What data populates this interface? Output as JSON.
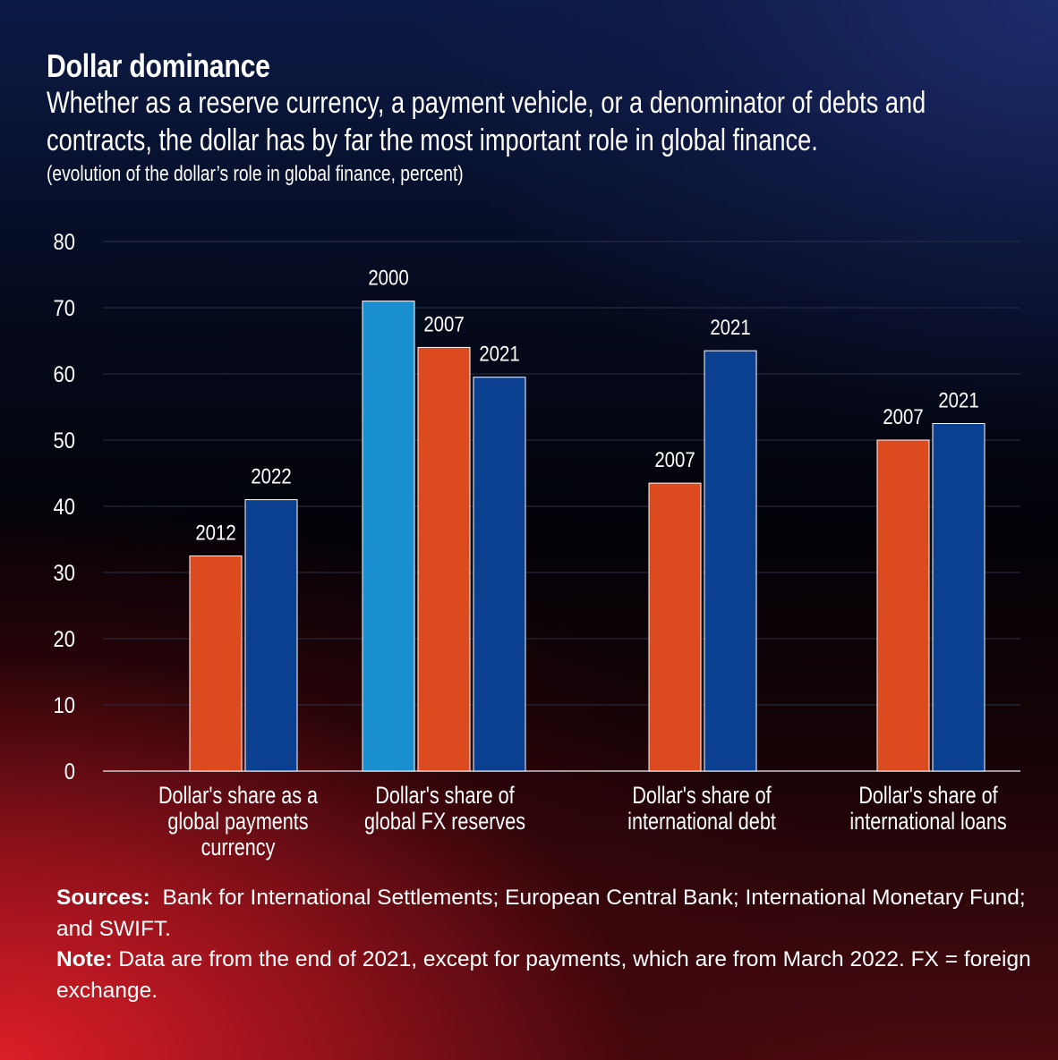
{
  "header": {
    "title": "Dollar dominance",
    "subtitle_line1": "Whether as a reserve currency, a payment vehicle, or a denominator of debts and",
    "subtitle_line2": "contracts, the dollar has by far the most important role in global finance.",
    "unit_note": "(evolution of the dollar’s role in global finance, percent)"
  },
  "colors": {
    "year_2000": "#1a8fd0",
    "orange": "#dc4a1f",
    "blue": "#0b3f8f",
    "grid": "#2a2f45"
  },
  "chart_data": {
    "type": "bar",
    "ylim": [
      0,
      80
    ],
    "yticks": [
      "0",
      "10",
      "20",
      "30",
      "40",
      "50",
      "60",
      "70",
      "80"
    ],
    "groups": [
      {
        "category_lines": [
          "Dollar's share as a",
          "global payments",
          "currency"
        ],
        "bars": [
          {
            "year": "2012",
            "value": 32.5,
            "color_key": "orange"
          },
          {
            "year": "2022",
            "value": 41,
            "color_key": "blue"
          }
        ]
      },
      {
        "category_lines": [
          "Dollar's share of",
          "global FX reserves"
        ],
        "bars": [
          {
            "year": "2000",
            "value": 71,
            "color_key": "year_2000"
          },
          {
            "year": "2007",
            "value": 64,
            "color_key": "orange"
          },
          {
            "year": "2021",
            "value": 59.5,
            "color_key": "blue"
          }
        ]
      },
      {
        "category_lines": [
          "Dollar's share of",
          "international debt"
        ],
        "bars": [
          {
            "year": "2007",
            "value": 43.5,
            "color_key": "orange"
          },
          {
            "year": "2021",
            "value": 63.5,
            "color_key": "blue"
          }
        ]
      },
      {
        "category_lines": [
          "Dollar's share of",
          "international loans"
        ],
        "bars": [
          {
            "year": "2007",
            "value": 50,
            "color_key": "orange"
          },
          {
            "year": "2021",
            "value": 52.5,
            "color_key": "blue"
          }
        ]
      }
    ]
  },
  "footer": {
    "sources_label": "Sources:",
    "sources_text": "Bank for International Settlements; European Central Bank; International Monetary Fund; and SWIFT.",
    "note_label": "Note:",
    "note_text": "Data are from the end of 2021, except for payments, which are from March 2022. FX = foreign exchange."
  }
}
